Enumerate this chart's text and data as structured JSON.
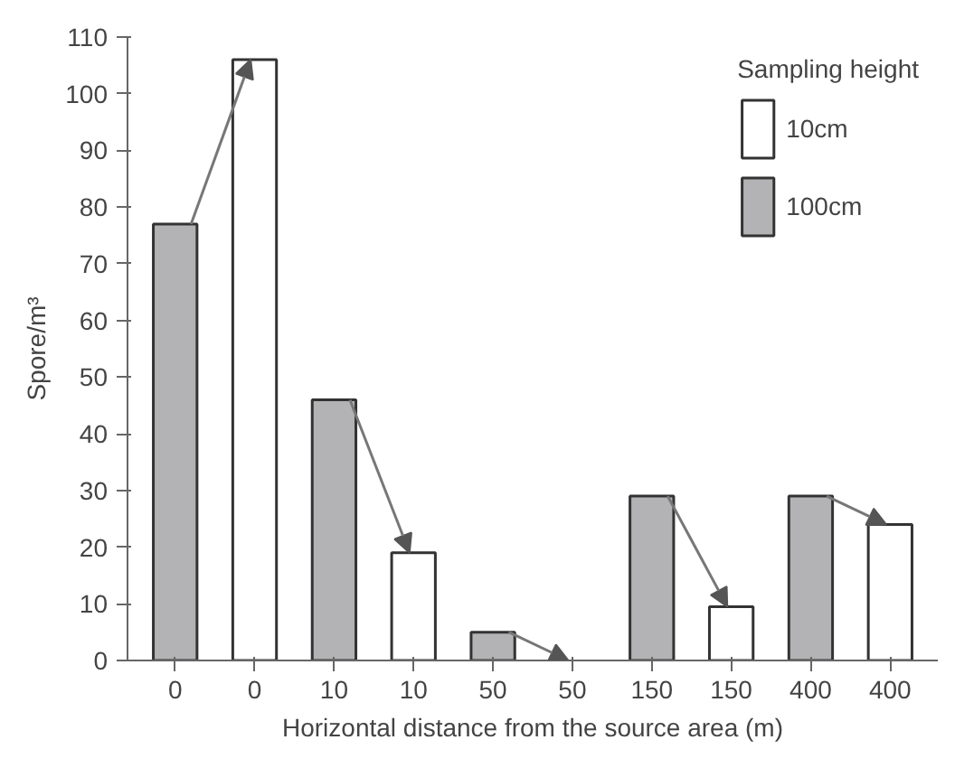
{
  "chart_data": {
    "type": "bar",
    "xlabel": "Horizontal distance from the source area (m)",
    "ylabel": "Spore/m³",
    "legend_title": "Sampling height",
    "categories": [
      "0",
      "0",
      "10",
      "10",
      "50",
      "50",
      "150",
      "150",
      "400",
      "400"
    ],
    "series": [
      {
        "name": "10cm",
        "color": "#ffffff",
        "values": [
          null,
          106,
          null,
          19,
          null,
          null,
          null,
          9.5,
          null,
          24
        ]
      },
      {
        "name": "100cm",
        "color": "#b3b3b5",
        "values": [
          77,
          null,
          46,
          null,
          5,
          null,
          29,
          null,
          29,
          null
        ]
      }
    ],
    "ylim": [
      0,
      110
    ],
    "yticks": [
      0,
      10,
      20,
      30,
      40,
      50,
      60,
      70,
      80,
      90,
      100,
      110
    ],
    "grid": false,
    "legend": "top right"
  }
}
